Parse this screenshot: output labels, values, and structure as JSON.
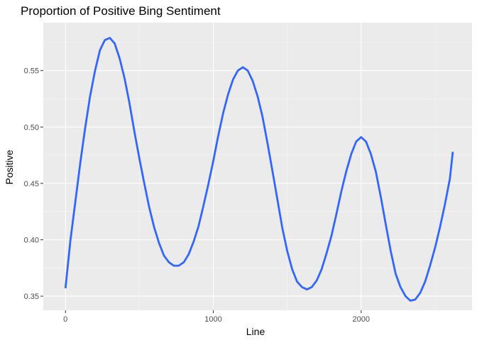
{
  "chart_data": {
    "type": "line",
    "title": "Proportion of Positive Bing Sentiment",
    "xlabel": "Line",
    "ylabel": "Positive",
    "xlim": [
      -150,
      2750
    ],
    "ylim": [
      0.3375,
      0.5925
    ],
    "x_ticks": [
      0,
      1000,
      2000
    ],
    "x_tick_labels": [
      "0",
      "1000",
      "2000"
    ],
    "y_ticks": [
      0.35,
      0.4,
      0.45,
      0.5,
      0.55
    ],
    "y_tick_labels": [
      "0.35",
      "0.40",
      "0.45",
      "0.50",
      "0.55"
    ],
    "grid": true,
    "legend": "none",
    "series": [
      {
        "color": "#3366ff",
        "x": [
          0,
          33,
          66,
          100,
          133,
          166,
          200,
          233,
          266,
          300,
          333,
          366,
          400,
          433,
          466,
          500,
          533,
          566,
          600,
          633,
          666,
          700,
          733,
          766,
          800,
          833,
          866,
          900,
          933,
          966,
          1000,
          1033,
          1066,
          1100,
          1133,
          1166,
          1200,
          1233,
          1266,
          1300,
          1333,
          1366,
          1400,
          1433,
          1466,
          1500,
          1533,
          1566,
          1600,
          1633,
          1666,
          1700,
          1733,
          1766,
          1800,
          1833,
          1866,
          1900,
          1933,
          1966,
          2000,
          2033,
          2066,
          2100,
          2133,
          2166,
          2200,
          2233,
          2266,
          2300,
          2333,
          2366,
          2400,
          2433,
          2466,
          2500,
          2533,
          2566,
          2600,
          2620
        ],
        "y": [
          0.357,
          0.399,
          0.433,
          0.468,
          0.499,
          0.527,
          0.55,
          0.568,
          0.577,
          0.579,
          0.574,
          0.561,
          0.543,
          0.521,
          0.496,
          0.472,
          0.45,
          0.429,
          0.411,
          0.397,
          0.386,
          0.38,
          0.377,
          0.377,
          0.38,
          0.387,
          0.398,
          0.412,
          0.43,
          0.449,
          0.47,
          0.492,
          0.512,
          0.529,
          0.542,
          0.55,
          0.553,
          0.55,
          0.541,
          0.527,
          0.509,
          0.486,
          0.461,
          0.436,
          0.411,
          0.39,
          0.374,
          0.363,
          0.358,
          0.356,
          0.358,
          0.364,
          0.374,
          0.388,
          0.404,
          0.423,
          0.443,
          0.461,
          0.476,
          0.487,
          0.491,
          0.487,
          0.476,
          0.46,
          0.438,
          0.414,
          0.39,
          0.37,
          0.358,
          0.35,
          0.346,
          0.347,
          0.353,
          0.363,
          0.377,
          0.393,
          0.411,
          0.431,
          0.454,
          0.478
        ]
      }
    ]
  }
}
